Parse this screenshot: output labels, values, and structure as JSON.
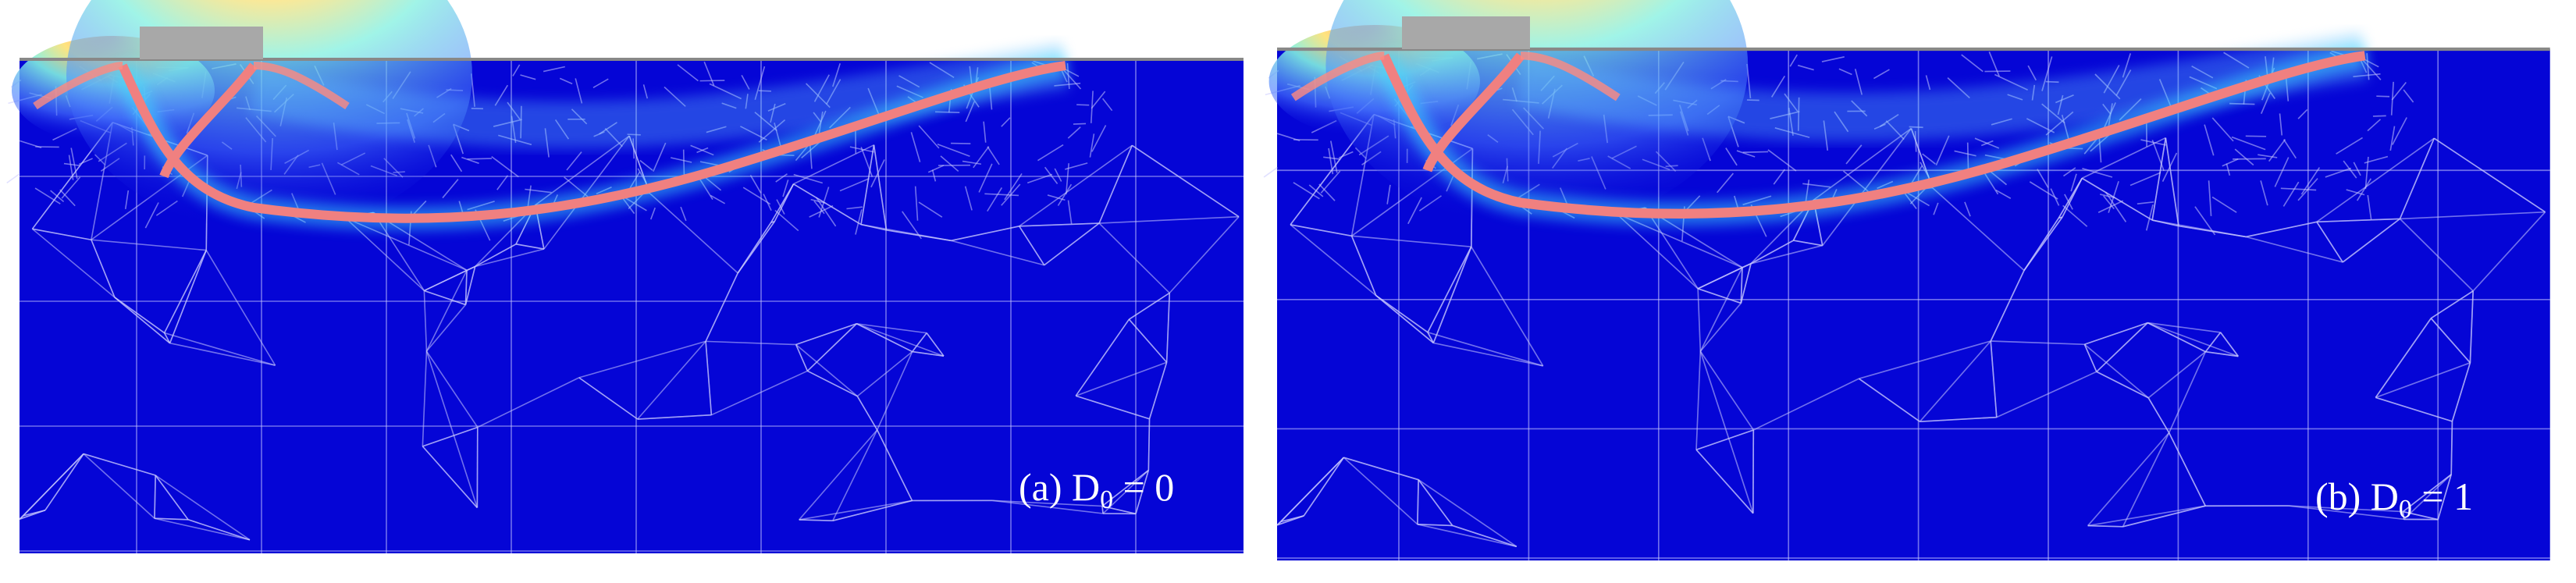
{
  "panels": [
    {
      "label_prefix": "(a) D",
      "subscript": "0",
      "label_suffix": " = 0"
    },
    {
      "label_prefix": "(b) D",
      "subscript": "0",
      "label_suffix": " = 1"
    }
  ]
}
